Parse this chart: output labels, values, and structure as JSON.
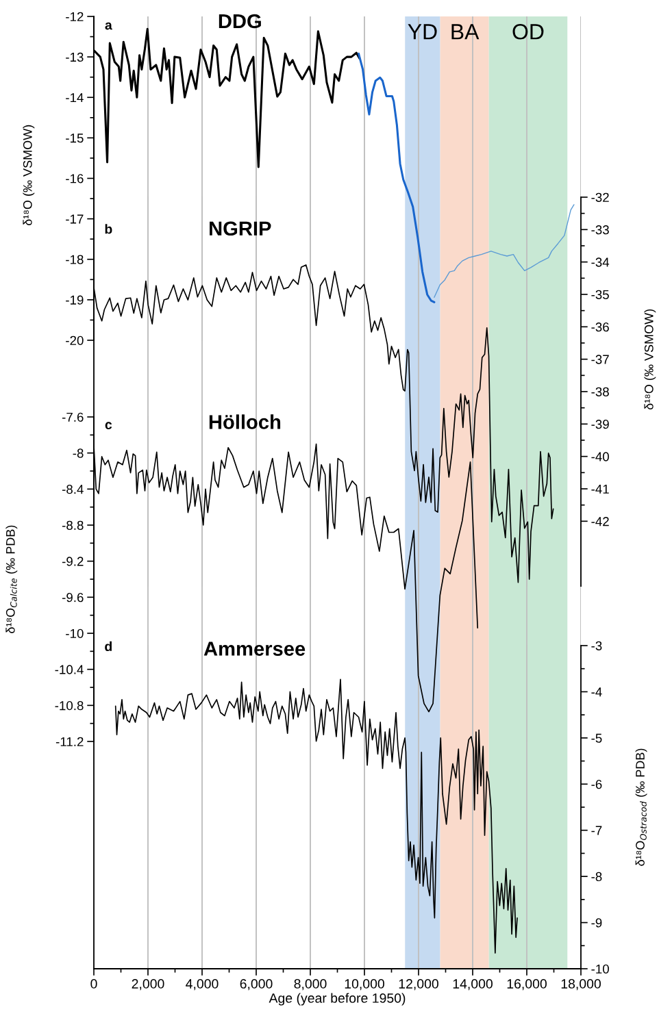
{
  "chart_data": [
    {
      "type": "line",
      "title": "DDG",
      "annotations": [
        "a"
      ],
      "grid": "x",
      "ylabel": "δ¹⁸O (‰ VSMOW)",
      "xlim": [
        0,
        18000
      ],
      "ylim": [
        -20,
        -12
      ],
      "yticks": [
        -12,
        -13,
        -14,
        -15,
        -16,
        -17,
        -18,
        -19,
        -20
      ],
      "tick_labels": "y",
      "series": [
        {
          "color": "#000000",
          "x": [
            0,
            236,
            354,
            495,
            590,
            766,
            920,
            979,
            1096,
            1297,
            1391,
            1474,
            1592,
            1686,
            1769,
            1886,
            1981,
            2099,
            2299,
            2476,
            2594,
            2688,
            2771,
            2889,
            2983,
            3183,
            3360,
            3596,
            3773,
            3950,
            4126,
            4280,
            4421,
            4539,
            4657,
            4869,
            5011,
            5105,
            5282,
            5459,
            5577,
            5718,
            5895,
            6084,
            6284,
            6426,
            6602,
            6779,
            6897,
            7074,
            7227,
            7345,
            7487,
            7699,
            7958,
            8135,
            8288,
            8489,
            8607,
            8807,
            8901,
            9055,
            9196,
            9350,
            9515,
            9703,
            9821
          ],
          "values": [
            -12.84,
            -13.0,
            -13.31,
            -15.6,
            -12.66,
            -13.12,
            -13.24,
            -13.59,
            -12.63,
            -13.2,
            -13.83,
            -13.34,
            -14.0,
            -12.96,
            -13.31,
            -12.8,
            -12.31,
            -13.31,
            -13.2,
            -13.59,
            -12.79,
            -13.31,
            -13.08,
            -14.14,
            -13.0,
            -13.02,
            -14.0,
            -13.34,
            -13.79,
            -12.82,
            -13.12,
            -13.5,
            -12.72,
            -12.82,
            -13.71,
            -13.5,
            -13.59,
            -13.0,
            -12.69,
            -13.43,
            -13.59,
            -13.24,
            -13.0,
            -15.72,
            -12.53,
            -12.72,
            -13.35,
            -13.98,
            -13.87,
            -12.92,
            -13.2,
            -13.08,
            -13.31,
            -13.55,
            -13.24,
            -13.67,
            -12.37,
            -12.96,
            -13.63,
            -14.13,
            -13.43,
            -13.59,
            -13.08,
            -13.0,
            -13.0,
            -12.9,
            -13.04
          ]
        },
        {
          "color": "#1a66cc",
          "x": [
            9786,
            9939,
            10057,
            10175,
            10293,
            10411,
            10576,
            10670,
            10811,
            11024,
            11083,
            11201,
            11318,
            11436,
            11613,
            11790,
            11967,
            12144,
            12321,
            12462,
            12580
          ],
          "values": [
            -12.92,
            -13.31,
            -13.94,
            -14.42,
            -13.87,
            -13.59,
            -13.51,
            -13.59,
            -13.97,
            -13.97,
            -14.1,
            -14.69,
            -15.64,
            -16.03,
            -16.35,
            -16.7,
            -17.45,
            -18.31,
            -18.87,
            -19.02,
            -19.06
          ]
        },
        {
          "color": "#5b9bd5",
          "x": [
            12580,
            12792,
            12969,
            13146,
            13323,
            13441,
            13617,
            13853,
            14089,
            14325,
            14679,
            15032,
            15268,
            15504,
            15681,
            15917,
            16153,
            16448,
            16801,
            16919,
            17154,
            17390,
            17626,
            17744
          ],
          "values": [
            -18.94,
            -18.63,
            -18.51,
            -18.31,
            -18.28,
            -18.16,
            -18.04,
            -17.96,
            -17.92,
            -17.88,
            -17.8,
            -17.88,
            -17.92,
            -17.88,
            -18.08,
            -18.28,
            -18.2,
            -18.08,
            -17.96,
            -17.8,
            -17.61,
            -17.41,
            -16.78,
            -16.65
          ]
        }
      ]
    },
    {
      "type": "line",
      "title": "NGRIP",
      "annotations": [
        "b"
      ],
      "grid": "x",
      "y2label": "δ¹⁸O (‰ VSMOW)",
      "xlim": [
        0,
        18000
      ],
      "y2lim": [
        -44,
        -32
      ],
      "y2ticks": [
        -32,
        -33,
        -34,
        -35,
        -36,
        -37,
        -38,
        -39,
        -40,
        -41,
        -42
      ],
      "tick_labels": "y",
      "series": [
        {
          "color": "#000000",
          "axis": "y2",
          "x": [
            0,
            118,
            295,
            389,
            590,
            707,
            884,
            1002,
            1179,
            1356,
            1474,
            1592,
            1769,
            1922,
            2004,
            2158,
            2299,
            2476,
            2594,
            2747,
            2948,
            3124,
            3301,
            3478,
            3690,
            3832,
            4009,
            4185,
            4362,
            4539,
            4716,
            4893,
            5070,
            5247,
            5423,
            5600,
            5718,
            5860,
            6013,
            6190,
            6367,
            6543,
            6661,
            6838,
            7015,
            7192,
            7369,
            7546,
            7664,
            7840,
            7958,
            8076,
            8218,
            8371,
            8548,
            8725,
            8901,
            9078,
            9255,
            9373,
            9491,
            9668,
            9845,
            9986,
            10139,
            10257,
            10375,
            10493,
            10611,
            10729,
            10847,
            10906,
            11000,
            11142,
            11259,
            11354,
            11436,
            11495,
            11590,
            11637,
            11731,
            11849,
            11908,
            11990,
            12085,
            12179,
            12262,
            12380,
            12462,
            12533,
            12615,
            12710,
            12792,
            12851,
            12933,
            13028,
            13122,
            13240,
            13382,
            13500,
            13559,
            13641,
            13712,
            13794,
            13853,
            13936,
            14007,
            14089,
            14183,
            14266,
            14348,
            14443,
            14525,
            14596,
            14702,
            14796,
            14855,
            14973,
            15091,
            15209,
            15327,
            15445,
            15563,
            15681,
            15799,
            15917,
            16034,
            16093,
            16152,
            16270,
            16424,
            16506,
            16624,
            16742,
            16801,
            16860,
            16919,
            16978
          ],
          "values": [
            -34.79,
            -35.42,
            -35.82,
            -35.47,
            -35.11,
            -35.52,
            -35.27,
            -35.67,
            -35.13,
            -35.11,
            -35.58,
            -35.13,
            -35.72,
            -34.59,
            -35.32,
            -35.91,
            -34.73,
            -35.57,
            -35.17,
            -35.13,
            -34.71,
            -35.22,
            -34.83,
            -35.17,
            -34.49,
            -35.08,
            -34.73,
            -35.17,
            -35.37,
            -34.49,
            -34.93,
            -34.49,
            -34.88,
            -34.73,
            -34.93,
            -34.63,
            -34.93,
            -34.32,
            -34.88,
            -34.59,
            -34.83,
            -34.44,
            -35.03,
            -34.44,
            -34.83,
            -34.78,
            -34.54,
            -34.69,
            -34.16,
            -34.09,
            -34.44,
            -34.69,
            -35.96,
            -34.73,
            -34.49,
            -35.13,
            -34.29,
            -35.03,
            -35.67,
            -34.83,
            -35.08,
            -34.73,
            -34.83,
            -34.69,
            -35.32,
            -36.16,
            -35.82,
            -36.11,
            -35.72,
            -36.06,
            -36.55,
            -37.15,
            -36.6,
            -36.95,
            -36.7,
            -37.49,
            -37.94,
            -37.98,
            -36.7,
            -36.8,
            -39.85,
            -40.44,
            -39.85,
            -40.64,
            -41.38,
            -40.25,
            -41.42,
            -40.64,
            -41.42,
            -39.76,
            -41.67,
            -41.72,
            -40.04,
            -39.95,
            -38.52,
            -39.85,
            -40.64,
            -39.85,
            -38.38,
            -38.57,
            -38.07,
            -39.11,
            -38.12,
            -38.38,
            -38.27,
            -39.31,
            -40.04,
            -38.67,
            -38.07,
            -37.93,
            -36.95,
            -36.85,
            -36.03,
            -36.9,
            -42.02,
            -40.4,
            -41.23,
            -41.82,
            -41.72,
            -42.51,
            -40.4,
            -43.1,
            -42.51,
            -43.89,
            -41.04,
            -42.22,
            -42.02,
            -43.79,
            -42.32,
            -41.52,
            -41.52,
            -39.85,
            -41.23,
            -40.84,
            -39.9,
            -40.04,
            -41.92,
            -41.62
          ]
        }
      ]
    },
    {
      "type": "line",
      "title": "Hölloch",
      "annotations": [
        "c"
      ],
      "grid": "x",
      "ylabel": "δ¹⁸O$_{Calcite}$ (‰ PDB)",
      "xlim": [
        0,
        18000
      ],
      "ylim": [
        -11.2,
        -7.6
      ],
      "yticks": [
        -7.6,
        -8,
        -8.4,
        -8.8,
        -9.2,
        -9.6,
        -10,
        -10.4,
        -10.8,
        -11.2
      ],
      "tick_labels": "y",
      "series": [
        {
          "color": "#000000",
          "x": [
            0,
            83,
            177,
            295,
            413,
            531,
            707,
            884,
            1061,
            1214,
            1356,
            1450,
            1533,
            1592,
            1651,
            1804,
            1886,
            1945,
            2040,
            2181,
            2323,
            2417,
            2511,
            2594,
            2712,
            2830,
            2912,
            3006,
            3101,
            3183,
            3301,
            3384,
            3478,
            3572,
            3655,
            3737,
            3855,
            3950,
            4044,
            4126,
            4209,
            4303,
            4421,
            4480,
            4598,
            4716,
            4834,
            4964,
            5129,
            5306,
            5541,
            5718,
            5895,
            6013,
            6107,
            6249,
            6426,
            6602,
            6779,
            6956,
            7192,
            7369,
            7605,
            7781,
            7958,
            8135,
            8218,
            8312,
            8406,
            8548,
            8642,
            8725,
            8843,
            8901,
            9020,
            9196,
            9350,
            9550,
            9703,
            9904,
            10080,
            10198,
            10340,
            10552,
            10729,
            10906,
            11083,
            11259,
            11495,
            11825,
            11990,
            12203,
            12380,
            12533,
            12792,
            12969,
            13169,
            13382,
            13617,
            13912,
            14183
          ],
          "values": [
            -7.92,
            -8.4,
            -8.45,
            -8.04,
            -8.13,
            -8.08,
            -8.27,
            -8.1,
            -8.13,
            -7.97,
            -8.22,
            -8.01,
            -8.03,
            -8.45,
            -8.22,
            -8.19,
            -8.42,
            -8.19,
            -8.33,
            -8.27,
            -7.99,
            -8.38,
            -8.22,
            -8.42,
            -8.27,
            -8.43,
            -8.26,
            -8.13,
            -8.45,
            -8.2,
            -8.35,
            -8.2,
            -8.66,
            -8.54,
            -8.27,
            -8.59,
            -8.35,
            -8.56,
            -8.8,
            -8.4,
            -8.66,
            -8.42,
            -8.1,
            -8.3,
            -8.38,
            -8.08,
            -8.17,
            -7.94,
            -8.03,
            -8.19,
            -8.38,
            -8.35,
            -8.2,
            -8.45,
            -8.2,
            -8.56,
            -8.27,
            -8.06,
            -8.42,
            -8.66,
            -7.99,
            -8.27,
            -8.1,
            -8.3,
            -8.38,
            -8.1,
            -7.9,
            -8.42,
            -8.13,
            -8.24,
            -8.95,
            -8.12,
            -8.77,
            -8.84,
            -8.06,
            -8.1,
            -8.43,
            -8.31,
            -8.36,
            -8.91,
            -8.5,
            -8.49,
            -8.79,
            -9.09,
            -8.7,
            -8.88,
            -8.88,
            -8.84,
            -9.51,
            -8.86,
            -10.47,
            -10.78,
            -10.87,
            -10.78,
            -9.58,
            -9.28,
            -9.34,
            -9.05,
            -8.75,
            -8.1,
            -9.94
          ]
        }
      ]
    },
    {
      "type": "line",
      "title": "Ammersee",
      "annotations": [
        "d"
      ],
      "y2label": "δ¹⁸O$_{Ostracod}$ (‰ PDB)",
      "xlabel": "Age (year before 1950)",
      "xlim": [
        0,
        18000
      ],
      "xticks": [
        0,
        {
          "value": 2000,
          "label": "2,000"
        },
        {
          "value": 4000,
          "label": "4,000"
        },
        {
          "value": 6000,
          "label": "6,000"
        },
        {
          "value": 8000,
          "label": "8,000"
        },
        {
          "value": 10000,
          "label": "10,000"
        },
        {
          "value": 12000,
          "label": "12,000"
        },
        {
          "value": 14000,
          "label": "14,000"
        },
        {
          "value": 16000,
          "label": "16,000"
        },
        {
          "value": 18000,
          "label": "18,000"
        }
      ],
      "grid": "x",
      "y2lim": [
        -10,
        -3
      ],
      "y2ticks": [
        -3,
        -4,
        -5,
        -6,
        -7,
        -8,
        -9,
        -10
      ],
      "bands": [
        {
          "axis": "x",
          "from": 11500,
          "to": 12800,
          "label": "YD",
          "color": "#c5daf1"
        },
        {
          "axis": "x",
          "from": 12800,
          "to": 14600,
          "label": "BA",
          "color": "#fadacb"
        },
        {
          "axis": "x",
          "from": 14600,
          "to": 17500,
          "label": "OD",
          "color": "#c8e8d4"
        }
      ],
      "series": [
        {
          "color": "#000000",
          "axis": "y2",
          "x": [
            802,
            849,
            908,
            967,
            1038,
            1096,
            1155,
            1238,
            1320,
            1415,
            1533,
            1651,
            1769,
            1945,
            2063,
            2240,
            2334,
            2417,
            2558,
            2712,
            2948,
            3183,
            3337,
            3478,
            3620,
            3773,
            3973,
            4162,
            4362,
            4539,
            4681,
            4834,
            5011,
            5188,
            5306,
            5388,
            5459,
            5541,
            5624,
            5718,
            5777,
            5860,
            5954,
            6072,
            6131,
            6249,
            6308,
            6426,
            6520,
            6602,
            6720,
            6838,
            6956,
            7074,
            7157,
            7251,
            7369,
            7463,
            7546,
            7664,
            7746,
            7840,
            7958,
            8053,
            8135,
            8218,
            8312,
            8406,
            8489,
            8607,
            8725,
            8843,
            8960,
            9114,
            9220,
            9314,
            9397,
            9515,
            9609,
            9786,
            9915,
            9998,
            10104,
            10198,
            10293,
            10399,
            10493,
            10587,
            10670,
            10764,
            10847,
            10929,
            11024,
            11106,
            11165,
            11236,
            11318,
            11401,
            11495,
            11531,
            11578,
            11637,
            11696,
            11755,
            11825,
            11908,
            11990,
            12049,
            12108,
            12167,
            12262,
            12344,
            12415,
            12497,
            12556,
            12592,
            12651,
            12710,
            12769,
            12816,
            12886,
            13028,
            13146,
            13264,
            13382,
            13476,
            13559,
            13641,
            13735,
            13853,
            13947,
            14030,
            14065,
            14124,
            14183,
            14231,
            14301,
            14384,
            14443,
            14525,
            14596,
            14679,
            14738,
            14832,
            14914,
            14997,
            15068,
            15150,
            15233,
            15304,
            15386,
            15445,
            15528,
            15599,
            15646
          ],
          "values": [
            -4.31,
            -4.93,
            -4.42,
            -4.48,
            -4.17,
            -4.59,
            -4.42,
            -4.62,
            -4.66,
            -4.48,
            -4.66,
            -4.31,
            -4.38,
            -4.45,
            -4.55,
            -4.24,
            -4.48,
            -4.31,
            -4.62,
            -4.35,
            -4.42,
            -4.21,
            -4.59,
            -4.07,
            -4.04,
            -4.38,
            -4.24,
            -4.07,
            -4.35,
            -4.17,
            -4.45,
            -4.52,
            -4.21,
            -4.35,
            -4.14,
            -4.59,
            -3.79,
            -4.55,
            -4.07,
            -4.45,
            -4.24,
            -4.66,
            -4.11,
            -4.42,
            -4.0,
            -4.52,
            -4.28,
            -4.55,
            -4.69,
            -4.35,
            -4.21,
            -4.59,
            -4.31,
            -4.48,
            -4.9,
            -4.0,
            -4.59,
            -4.14,
            -4.55,
            -4.28,
            -3.93,
            -4.42,
            -4.07,
            -4.21,
            -4.31,
            -5.07,
            -4.83,
            -4.38,
            -4.93,
            -4.17,
            -4.42,
            -4.35,
            -4.97,
            -3.73,
            -5.45,
            -4.55,
            -4.17,
            -4.97,
            -4.45,
            -4.55,
            -4.87,
            -4.21,
            -5.59,
            -4.59,
            -5.04,
            -4.8,
            -5.35,
            -4.66,
            -5.66,
            -4.87,
            -5.38,
            -4.8,
            -5.52,
            -4.9,
            -4.45,
            -5.18,
            -5.66,
            -5.24,
            -5.0,
            -5.31,
            -6.63,
            -7.66,
            -7.25,
            -7.8,
            -7.32,
            -8.08,
            -7.59,
            -8.15,
            -5.31,
            -8.21,
            -7.59,
            -8.21,
            -8.42,
            -7.25,
            -8.49,
            -8.9,
            -7.39,
            -6.49,
            -5.52,
            -5.0,
            -6.21,
            -6.87,
            -6.07,
            -5.56,
            -5.87,
            -5.24,
            -6.76,
            -6.04,
            -5.49,
            -5.04,
            -4.97,
            -5.24,
            -6.56,
            -4.87,
            -6.21,
            -4.83,
            -6.04,
            -5.18,
            -7.11,
            -5.73,
            -5.94,
            -6.52,
            -7.94,
            -9.66,
            -8.11,
            -8.63,
            -8.15,
            -8.7,
            -7.83,
            -8.73,
            -8.08,
            -9.25,
            -8.21,
            -9.32,
            -8.9
          ]
        }
      ]
    }
  ]
}
